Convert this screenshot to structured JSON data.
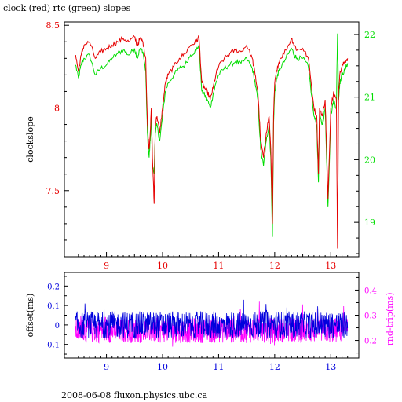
{
  "title": "clock (red) rtc (green) slopes",
  "footer": "2008-06-08 fluxon.physics.ubc.ca",
  "colors": {
    "red": "#e60000",
    "green": "#00dd00",
    "blue": "#0000dd",
    "magenta": "#ff00ff",
    "axis": "#000000"
  },
  "chart_data": [
    {
      "type": "line",
      "name": "top-panel",
      "ylabel": "clockslope",
      "xticks": [
        "9",
        "10",
        "11",
        "12",
        "13"
      ],
      "xlim": [
        8.25,
        13.5
      ],
      "ylim_left": [
        7.1,
        8.52
      ],
      "yticks_left": [
        "7.5",
        "8",
        "8.5"
      ],
      "ylim_right": [
        18.45,
        22.2
      ],
      "yticks_right": [
        "19",
        "20",
        "21",
        "22"
      ],
      "series": [
        {
          "color": "red",
          "axis": "left",
          "x": [
            8.45,
            8.5,
            8.55,
            8.6,
            8.7,
            8.8,
            8.9,
            9.0,
            9.1,
            9.2,
            9.3,
            9.4,
            9.5,
            9.55,
            9.6,
            9.65,
            9.7,
            9.73,
            9.76,
            9.78,
            9.8,
            9.82,
            9.85,
            9.87,
            9.9,
            9.95,
            10.0,
            10.05,
            10.1,
            10.2,
            10.3,
            10.4,
            10.5,
            10.6,
            10.65,
            10.7,
            10.75,
            10.8,
            10.85,
            10.9,
            10.95,
            11.0,
            11.1,
            11.2,
            11.3,
            11.4,
            11.5,
            11.6,
            11.65,
            11.7,
            11.75,
            11.8,
            11.85,
            11.9,
            11.93,
            11.96,
            11.98,
            12.0,
            12.05,
            12.1,
            12.2,
            12.3,
            12.35,
            12.4,
            12.5,
            12.6,
            12.7,
            12.75,
            12.78,
            12.8,
            12.85,
            12.9,
            12.93,
            12.95,
            13.0,
            13.05,
            13.1,
            13.12,
            13.14,
            13.16,
            13.2,
            13.25,
            13.3
          ],
          "y": [
            8.32,
            8.22,
            8.32,
            8.38,
            8.4,
            8.3,
            8.34,
            8.36,
            8.38,
            8.4,
            8.42,
            8.4,
            8.43,
            8.38,
            8.42,
            8.4,
            8.3,
            7.9,
            7.75,
            7.85,
            8.0,
            7.7,
            7.42,
            7.9,
            7.95,
            7.85,
            8.0,
            8.15,
            8.2,
            8.25,
            8.3,
            8.33,
            8.38,
            8.4,
            8.43,
            8.15,
            8.12,
            8.1,
            8.05,
            8.12,
            8.2,
            8.25,
            8.3,
            8.33,
            8.35,
            8.34,
            8.38,
            8.3,
            8.2,
            8.1,
            7.8,
            7.7,
            7.85,
            7.95,
            7.75,
            7.3,
            7.95,
            8.15,
            8.25,
            8.3,
            8.35,
            8.42,
            8.38,
            8.35,
            8.36,
            8.3,
            8.0,
            7.95,
            7.6,
            8.0,
            7.95,
            8.05,
            7.7,
            7.45,
            8.0,
            8.1,
            8.05,
            7.15,
            8.1,
            8.2,
            8.25,
            8.28,
            8.3
          ]
        },
        {
          "color": "green",
          "axis": "left",
          "x": [
            8.45,
            8.5,
            8.55,
            8.6,
            8.7,
            8.8,
            8.9,
            9.0,
            9.1,
            9.2,
            9.3,
            9.4,
            9.5,
            9.55,
            9.6,
            9.65,
            9.7,
            9.73,
            9.76,
            9.78,
            9.8,
            9.82,
            9.85,
            9.87,
            9.9,
            9.95,
            10.0,
            10.05,
            10.1,
            10.2,
            10.3,
            10.4,
            10.5,
            10.6,
            10.65,
            10.7,
            10.75,
            10.8,
            10.85,
            10.9,
            10.95,
            11.0,
            11.1,
            11.2,
            11.3,
            11.4,
            11.5,
            11.6,
            11.65,
            11.7,
            11.75,
            11.8,
            11.85,
            11.9,
            11.93,
            11.96,
            11.98,
            12.0,
            12.05,
            12.1,
            12.2,
            12.3,
            12.35,
            12.4,
            12.5,
            12.6,
            12.7,
            12.75,
            12.78,
            12.8,
            12.85,
            12.9,
            12.93,
            12.95,
            13.0,
            13.05,
            13.1,
            13.12,
            13.14,
            13.16,
            13.2,
            13.25,
            13.3
          ],
          "y": [
            8.26,
            8.18,
            8.26,
            8.3,
            8.32,
            8.2,
            8.24,
            8.26,
            8.3,
            8.33,
            8.35,
            8.32,
            8.36,
            8.3,
            8.36,
            8.34,
            8.22,
            7.85,
            7.7,
            7.8,
            7.95,
            7.65,
            7.6,
            7.85,
            7.9,
            7.8,
            7.95,
            8.1,
            8.15,
            8.2,
            8.24,
            8.26,
            8.32,
            8.35,
            8.38,
            8.1,
            8.08,
            8.05,
            8.0,
            8.08,
            8.15,
            8.2,
            8.24,
            8.26,
            8.28,
            8.27,
            8.3,
            8.24,
            8.15,
            8.05,
            7.75,
            7.65,
            7.8,
            7.9,
            7.7,
            7.22,
            7.9,
            8.1,
            8.2,
            8.24,
            8.3,
            8.36,
            8.32,
            8.3,
            8.3,
            8.25,
            7.95,
            7.9,
            7.55,
            7.95,
            7.9,
            8.0,
            7.65,
            7.4,
            7.95,
            8.05,
            8.0,
            8.45,
            8.05,
            8.15,
            8.2,
            8.23,
            8.27
          ]
        }
      ]
    },
    {
      "type": "line",
      "name": "bottom-panel",
      "ylabel_left": "offset(ms)",
      "ylabel_right": "rnd-trip(ms)",
      "xticks": [
        "9",
        "10",
        "11",
        "12",
        "13"
      ],
      "xlim": [
        8.25,
        13.5
      ],
      "ylim_left": [
        -0.17,
        0.27
      ],
      "yticks_left": [
        "-0.1",
        "0",
        "0.1",
        "0.2"
      ],
      "ylim_right": [
        0.13,
        0.47
      ],
      "yticks_right": [
        "0.2",
        "0.3",
        "0.4"
      ],
      "series": [
        {
          "color": "magenta",
          "axis": "right",
          "band_low": 0.19,
          "band_high": 0.29,
          "base": 0.24
        },
        {
          "color": "blue",
          "axis": "left",
          "band_low": -0.07,
          "band_high": 0.07,
          "base": 0.0
        }
      ]
    }
  ]
}
